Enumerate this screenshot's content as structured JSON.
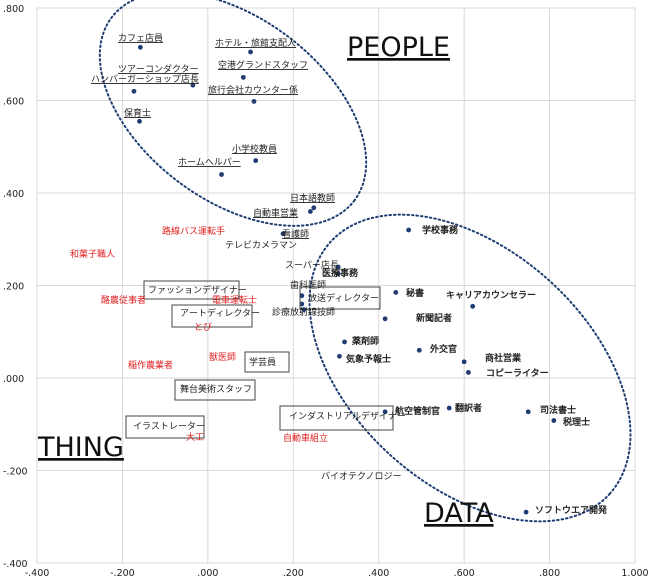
{
  "chart_data": {
    "type": "scatter",
    "xlim": [
      -0.4,
      1.0
    ],
    "ylim": [
      -0.4,
      0.8
    ],
    "x_ticks": [
      -0.4,
      -0.2,
      0.0,
      0.2,
      0.4,
      0.6,
      0.8,
      1.0
    ],
    "y_ticks": [
      -0.4,
      -0.2,
      0.0,
      0.2,
      0.4,
      0.6,
      0.8
    ],
    "x_tick_labels": [
      "-.400",
      "-.200",
      ".000",
      ".200",
      ".400",
      ".600",
      ".800",
      "1.000"
    ],
    "y_tick_labels": [
      "-.400",
      "-.200",
      ".000",
      ".200",
      ".400",
      ".600",
      ".800"
    ],
    "grid": true,
    "region_labels": [
      "PEOPLE",
      "THING",
      "DATA"
    ],
    "points": [
      {
        "label": "カフェ店員",
        "x": -0.158,
        "y": 0.715,
        "style": "underline"
      },
      {
        "label": "ホテル・旅館支配人",
        "x": 0.1,
        "y": 0.705,
        "style": "underline"
      },
      {
        "label": "ツアーコンダクター",
        "x": -0.035,
        "y": 0.633,
        "style": "underline"
      },
      {
        "label": "空港グランドスタッフ",
        "x": 0.083,
        "y": 0.65,
        "style": "underline"
      },
      {
        "label": "ハンバーガーショップ店長",
        "x": -0.173,
        "y": 0.62,
        "style": "underline"
      },
      {
        "label": "旅行会社カウンター係",
        "x": 0.108,
        "y": 0.598,
        "style": "underline"
      },
      {
        "label": "保育士",
        "x": -0.16,
        "y": 0.555,
        "style": "underline"
      },
      {
        "label": "小学校教員",
        "x": 0.112,
        "y": 0.47,
        "style": "underline"
      },
      {
        "label": "ホームヘルパー",
        "x": 0.032,
        "y": 0.44,
        "style": "underline"
      },
      {
        "label": "日本語教師",
        "x": 0.248,
        "y": 0.368,
        "style": "underline"
      },
      {
        "label": "自動車営業",
        "x": 0.24,
        "y": 0.36,
        "style": "underline"
      },
      {
        "label": "看護師",
        "x": 0.176,
        "y": 0.312,
        "style": "underline"
      },
      {
        "label": "路線バス運転手",
        "x": null,
        "y": null,
        "style": "red"
      },
      {
        "label": "テレビカメラマン",
        "x": null,
        "y": null,
        "style": "plain"
      },
      {
        "label": "スーパー店長",
        "x": 0.305,
        "y": 0.24,
        "style": "plain"
      },
      {
        "label": "和菓子職人",
        "x": null,
        "y": null,
        "style": "red"
      },
      {
        "label": "学校事務",
        "x": 0.47,
        "y": 0.32,
        "style": "bold"
      },
      {
        "label": "医療事務",
        "x": 0.305,
        "y": 0.225,
        "style": "bold"
      },
      {
        "label": "歯科医師",
        "x": 0.22,
        "y": 0.178,
        "style": "plain"
      },
      {
        "label": "秘書",
        "x": 0.44,
        "y": 0.185,
        "style": "bold"
      },
      {
        "label": "キャリアカウンセラー",
        "x": 0.62,
        "y": 0.155,
        "style": "bold"
      },
      {
        "label": "放送ディレクター",
        "x": 0.22,
        "y": 0.16,
        "style": "boxed"
      },
      {
        "label": "診療放射線技師",
        "x": 0.225,
        "y": 0.148,
        "style": "plain"
      },
      {
        "label": "ファッションデザイナー",
        "x": null,
        "y": null,
        "style": "boxed"
      },
      {
        "label": "酪農従事者",
        "x": null,
        "y": null,
        "style": "red"
      },
      {
        "label": "電車運転士",
        "x": null,
        "y": null,
        "style": "red"
      },
      {
        "label": "アートディレクター",
        "x": null,
        "y": null,
        "style": "boxed"
      },
      {
        "label": "とび",
        "x": null,
        "y": null,
        "style": "red"
      },
      {
        "label": "新聞記者",
        "x": 0.415,
        "y": 0.128,
        "style": "bold"
      },
      {
        "label": "薬剤師",
        "x": 0.32,
        "y": 0.078,
        "style": "bold"
      },
      {
        "label": "外交官",
        "x": 0.495,
        "y": 0.06,
        "style": "bold"
      },
      {
        "label": "気象予報士",
        "x": 0.308,
        "y": 0.047,
        "style": "bold"
      },
      {
        "label": "商社営業",
        "x": 0.6,
        "y": 0.035,
        "style": "bold"
      },
      {
        "label": "コピーライター",
        "x": 0.61,
        "y": 0.012,
        "style": "bold"
      },
      {
        "label": "獣医師",
        "x": null,
        "y": null,
        "style": "red"
      },
      {
        "label": "学芸員",
        "x": null,
        "y": null,
        "style": "boxed"
      },
      {
        "label": "稲作農業者",
        "x": null,
        "y": null,
        "style": "red"
      },
      {
        "label": "舞台美術スタッフ",
        "x": null,
        "y": null,
        "style": "boxed"
      },
      {
        "label": "翻訳者",
        "x": 0.565,
        "y": -0.065,
        "style": "bold"
      },
      {
        "label": "航空管制官",
        "x": 0.415,
        "y": -0.073,
        "style": "bold"
      },
      {
        "label": "司法書士",
        "x": 0.75,
        "y": -0.073,
        "style": "bold"
      },
      {
        "label": "税理士",
        "x": 0.81,
        "y": -0.092,
        "style": "bold"
      },
      {
        "label": "インダストリアルデザイナー",
        "x": null,
        "y": null,
        "style": "boxed"
      },
      {
        "label": "イラストレーター",
        "x": null,
        "y": null,
        "style": "boxed"
      },
      {
        "label": "大工",
        "x": null,
        "y": null,
        "style": "red"
      },
      {
        "label": "自動車組立",
        "x": null,
        "y": null,
        "style": "red"
      },
      {
        "label": "バイオテクノロジー",
        "x": null,
        "y": null,
        "style": "plain"
      },
      {
        "label": "ソフトウエア開発",
        "x": 0.745,
        "y": -0.29,
        "style": "bold"
      }
    ]
  },
  "colors": {
    "marker": "#1f3d73",
    "ellipse": "#1f3d73",
    "red_label": "#e02020",
    "grid": "#d9d9d9"
  }
}
